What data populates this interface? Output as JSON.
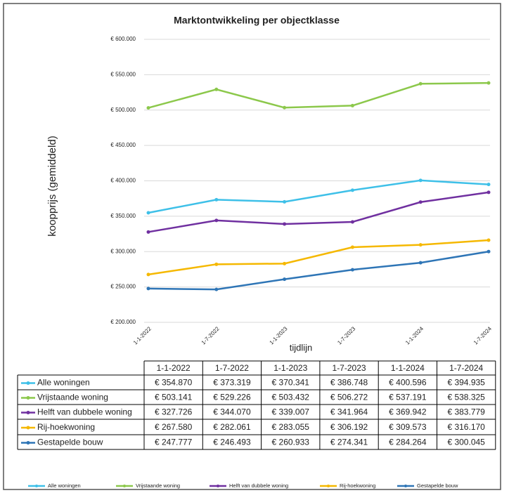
{
  "chart_data": {
    "type": "line",
    "title": "Marktontwikkeling per objectklasse",
    "y_label": "koopprijs (gemiddeld)",
    "x_label": "tijdlijn",
    "categories": [
      "1-1-2022",
      "1-7-2022",
      "1-1-2023",
      "1-7-2023",
      "1-1-2024",
      "1-7-2024"
    ],
    "series": [
      {
        "name": "Alle woningen",
        "color": "#3ec0e8",
        "values": [
          354870,
          373319,
          370341,
          386748,
          400596,
          394935
        ],
        "value_labels": [
          "€ 354.870",
          "€ 373.319",
          "€ 370.341",
          "€ 386.748",
          "€ 400.596",
          "€ 394.935"
        ]
      },
      {
        "name": "Vrijstaande woning",
        "color": "#8cc84b",
        "values": [
          503141,
          529226,
          503432,
          506272,
          537191,
          538325
        ],
        "value_labels": [
          "€ 503.141",
          "€ 529.226",
          "€ 503.432",
          "€ 506.272",
          "€ 537.191",
          "€ 538.325"
        ]
      },
      {
        "name": "Helft van dubbele woning",
        "color": "#7030a0",
        "values": [
          327726,
          344070,
          339007,
          341964,
          369942,
          383779
        ],
        "value_labels": [
          "€ 327.726",
          "€ 344.070",
          "€ 339.007",
          "€ 341.964",
          "€ 369.942",
          "€ 383.779"
        ]
      },
      {
        "name": "Rij-hoekwoning",
        "color": "#f5b800",
        "values": [
          267580,
          282061,
          283055,
          306192,
          309573,
          316170
        ],
        "value_labels": [
          "€ 267.580",
          "€ 282.061",
          "€ 283.055",
          "€ 306.192",
          "€ 309.573",
          "€ 316.170"
        ]
      },
      {
        "name": "Gestapelde bouw",
        "color": "#2e75b6",
        "values": [
          247777,
          246493,
          260933,
          274341,
          284264,
          300045
        ],
        "value_labels": [
          "€ 247.777",
          "€ 246.493",
          "€ 260.933",
          "€ 274.341",
          "€ 284.264",
          "€ 300.045"
        ]
      }
    ],
    "ylim": [
      200000,
      600000
    ],
    "yticks": [
      {
        "value": 200000,
        "label": "€ 200.000"
      },
      {
        "value": 250000,
        "label": "€ 250.000"
      },
      {
        "value": 300000,
        "label": "€ 300.000"
      },
      {
        "value": 350000,
        "label": "€ 350.000"
      },
      {
        "value": 400000,
        "label": "€ 400.000"
      },
      {
        "value": 450000,
        "label": "€ 450.000"
      },
      {
        "value": 500000,
        "label": "€ 500.000"
      },
      {
        "value": 550000,
        "label": "€ 550.000"
      },
      {
        "value": 600000,
        "label": "€ 600.000"
      }
    ],
    "grid": true,
    "legend": "bottom"
  }
}
